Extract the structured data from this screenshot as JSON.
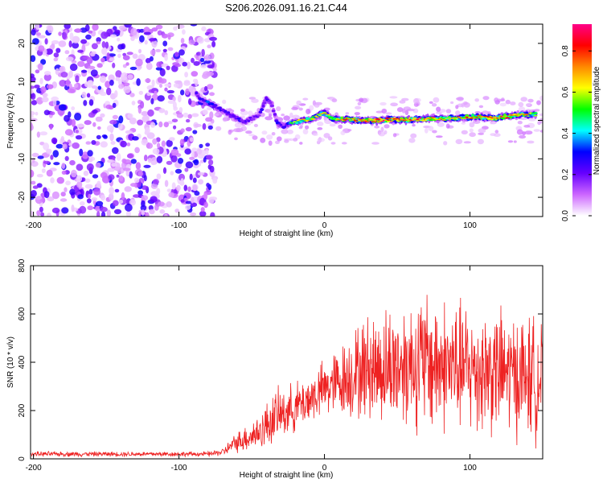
{
  "title": "S206.2026.091.16.21.C44",
  "chart_data": [
    {
      "type": "heatmap",
      "name": "spectrogram",
      "xlabel": "Height of straight line (km)",
      "ylabel": "Frequency (Hz)",
      "xlim": [
        -202,
        150
      ],
      "ylim": [
        -25,
        25
      ],
      "xticks": [
        -200,
        -100,
        0,
        100
      ],
      "yticks": [
        -20,
        -10,
        0,
        10,
        20
      ],
      "colorbar": {
        "label": "Normalized spectral amplitude",
        "range": [
          0,
          0.93
        ],
        "ticks": [
          0.0,
          0.2,
          0.4,
          0.6,
          0.8
        ],
        "colors": [
          "#ffffff",
          "#cc66ff",
          "#6600ff",
          "#0000ff",
          "#00ffff",
          "#00ff00",
          "#ffff00",
          "#ff8800",
          "#ff0000",
          "#ff0088"
        ]
      },
      "noise_region_x": [
        -202,
        -75
      ],
      "signal_ridge": [
        {
          "x": -88,
          "y": 7,
          "amp": 0.3
        },
        {
          "x": -85,
          "y": 5.5,
          "amp": 0.35
        },
        {
          "x": -80,
          "y": 4.5,
          "amp": 0.4
        },
        {
          "x": -75,
          "y": 3.5,
          "amp": 0.35
        },
        {
          "x": -70,
          "y": 2.5,
          "amp": 0.3
        },
        {
          "x": -65,
          "y": 1.5,
          "amp": 0.35
        },
        {
          "x": -60,
          "y": 0.5,
          "amp": 0.3
        },
        {
          "x": -55,
          "y": -0.5,
          "amp": 0.35
        },
        {
          "x": -50,
          "y": 0.5,
          "amp": 0.3
        },
        {
          "x": -45,
          "y": 1.5,
          "amp": 0.3
        },
        {
          "x": -40,
          "y": 5.5,
          "amp": 0.35
        },
        {
          "x": -36,
          "y": 4,
          "amp": 0.3
        },
        {
          "x": -32,
          "y": -1,
          "amp": 0.35
        },
        {
          "x": -28,
          "y": -1.5,
          "amp": 0.3
        },
        {
          "x": -22,
          "y": -0.5,
          "amp": 0.5
        },
        {
          "x": -15,
          "y": 0,
          "amp": 0.55
        },
        {
          "x": -8,
          "y": 0.5,
          "amp": 0.6
        },
        {
          "x": 0,
          "y": 2,
          "amp": 0.55
        },
        {
          "x": 5,
          "y": 0.5,
          "amp": 0.6
        },
        {
          "x": 15,
          "y": 0.3,
          "amp": 0.7
        },
        {
          "x": 25,
          "y": 0,
          "amp": 0.65
        },
        {
          "x": 35,
          "y": 0,
          "amp": 0.85
        },
        {
          "x": 45,
          "y": 0.2,
          "amp": 0.75
        },
        {
          "x": 55,
          "y": 0,
          "amp": 0.7
        },
        {
          "x": 65,
          "y": 0.3,
          "amp": 0.8
        },
        {
          "x": 75,
          "y": 0.5,
          "amp": 0.65
        },
        {
          "x": 85,
          "y": 0.5,
          "amp": 0.6
        },
        {
          "x": 95,
          "y": 0.8,
          "amp": 0.7
        },
        {
          "x": 105,
          "y": 1,
          "amp": 0.65
        },
        {
          "x": 115,
          "y": 0.5,
          "amp": 0.75
        },
        {
          "x": 125,
          "y": 1,
          "amp": 0.7
        },
        {
          "x": 135,
          "y": 1.5,
          "amp": 0.65
        },
        {
          "x": 145,
          "y": 1.5,
          "amp": 0.6
        }
      ]
    },
    {
      "type": "line",
      "name": "snr",
      "xlabel": "Height of straight line (km)",
      "ylabel": "SNR (10 * v/v)",
      "xlim": [
        -202,
        150
      ],
      "ylim": [
        0,
        800
      ],
      "xticks": [
        -200,
        -100,
        0,
        100
      ],
      "yticks": [
        0,
        200,
        400,
        600,
        800
      ],
      "color": "#ee2222",
      "envelope": {
        "x": [
          -202,
          -80,
          -70,
          -60,
          -45,
          -35,
          -25,
          -15,
          -5,
          0,
          10,
          20,
          30,
          40,
          50,
          60,
          70,
          80,
          90,
          100,
          110,
          120,
          130,
          140,
          150
        ],
        "mean": [
          20,
          20,
          28,
          70,
          110,
          170,
          200,
          230,
          270,
          290,
          320,
          350,
          380,
          380,
          390,
          400,
          400,
          390,
          380,
          370,
          370,
          360,
          350,
          340,
          330
        ],
        "spread": [
          12,
          12,
          18,
          50,
          90,
          130,
          120,
          120,
          130,
          140,
          170,
          220,
          260,
          280,
          300,
          320,
          350,
          330,
          320,
          320,
          320,
          310,
          300,
          300,
          300
        ]
      }
    }
  ]
}
